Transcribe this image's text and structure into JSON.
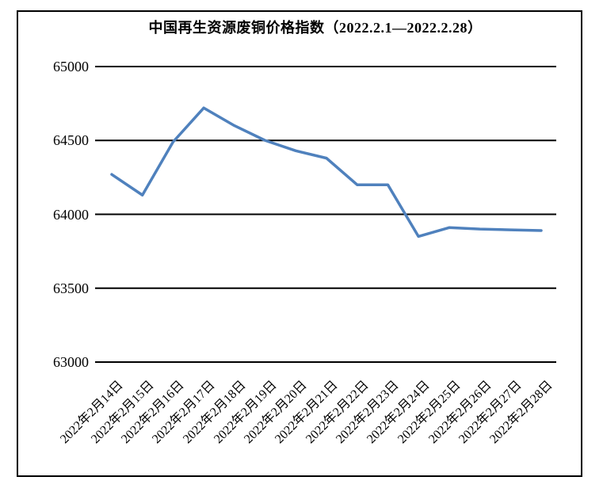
{
  "window": {
    "background_color": "#ffffff",
    "frame_border_color": "#000000"
  },
  "chart_data": {
    "type": "line",
    "title": "中国再生资源废铜价格指数（2022.2.1—2022.2.28）",
    "categories": [
      "2022年2月14日",
      "2022年2月15日",
      "2022年2月16日",
      "2022年2月17日",
      "2022年2月18日",
      "2022年2月19日",
      "2022年2月20日",
      "2022年2月21日",
      "2022年2月22日",
      "2022年2月23日",
      "2022年2月24日",
      "2022年2月25日",
      "2022年2月26日",
      "2022年2月27日",
      "2022年2月28日"
    ],
    "values": [
      64270,
      64130,
      64490,
      64720,
      64600,
      64500,
      64430,
      64380,
      64200,
      64200,
      63850,
      63910,
      63900,
      63895,
      63890
    ],
    "xlabel": "",
    "ylabel": "",
    "ylim": [
      63000,
      65000
    ],
    "yticks": [
      65000,
      64500,
      64000,
      63500,
      63000
    ],
    "ytick_interval": 500,
    "grid": "horizontal",
    "gridline_color": "#000000",
    "legend": "none",
    "line_color": "#4f81bd",
    "markers": false
  }
}
